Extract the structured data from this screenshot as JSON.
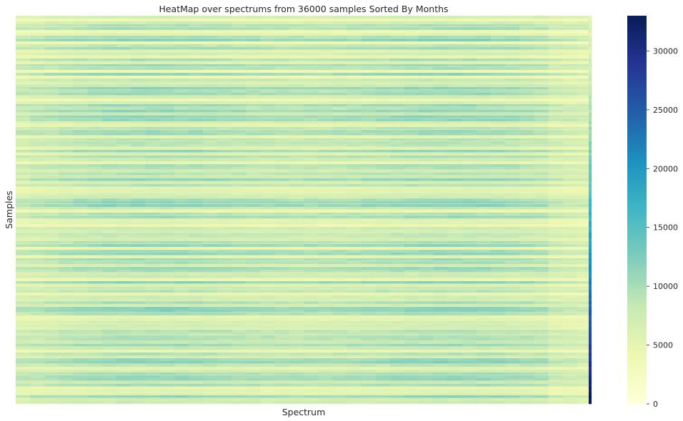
{
  "chart_data": {
    "type": "heatmap",
    "title": "HeatMap over spectrums from 36000 samples Sorted By Months",
    "xlabel": "Spectrum",
    "ylabel": "Samples",
    "rows": 36000,
    "x_ticks_shown": false,
    "y_ticks_shown": false,
    "colormap": "YlGnBu",
    "colorbar": {
      "min": 0,
      "max": 33000,
      "ticks": [
        0,
        5000,
        10000,
        15000,
        20000,
        25000,
        30000
      ],
      "tick_labels": [
        "0",
        "5000",
        "10000",
        "15000",
        "20000",
        "25000",
        "30000"
      ],
      "colors": [
        "#ffffd9",
        "#edf8b1",
        "#c7e9b4",
        "#7fcdbb",
        "#41b6c4",
        "#1d91c0",
        "#225ea8",
        "#253494",
        "#081d58"
      ]
    },
    "typical_value_range": [
      4000,
      14000
    ],
    "last_column_value_range": [
      5000,
      33000
    ],
    "grid": false
  }
}
